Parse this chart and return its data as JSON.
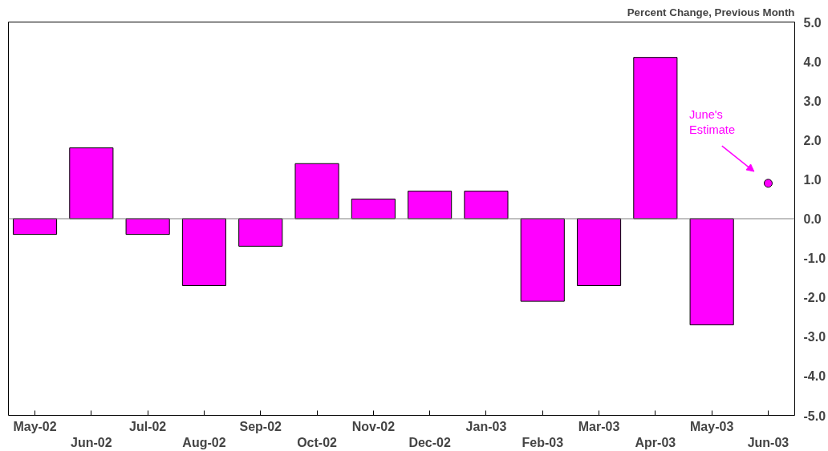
{
  "chart_data": {
    "type": "bar",
    "ylabel": "Percent Change, Previous Month",
    "categories": [
      "May-02",
      "Jun-02",
      "Jul-02",
      "Aug-02",
      "Sep-02",
      "Oct-02",
      "Nov-02",
      "Dec-02",
      "Jan-03",
      "Feb-03",
      "Mar-03",
      "Apr-03",
      "May-03",
      "Jun-03"
    ],
    "series": [
      {
        "color": "#ff00ff",
        "values": [
          -0.4,
          1.8,
          -0.4,
          -1.7,
          -0.7,
          1.4,
          0.5,
          0.7,
          0.7,
          -2.1,
          -1.7,
          4.1,
          -2.7,
          null
        ]
      },
      {
        "type": "scatter",
        "color": "#ff00ff",
        "marker": "circle",
        "values": [
          null,
          null,
          null,
          null,
          null,
          null,
          null,
          null,
          null,
          null,
          null,
          null,
          null,
          0.9
        ]
      }
    ],
    "annotations": [
      "June's\nEstimate"
    ],
    "ylim": [
      -5,
      5
    ],
    "yticks": [
      {
        "value": -5,
        "label": "-5.0"
      },
      {
        "value": -4,
        "label": "-4.0"
      },
      {
        "value": -3,
        "label": "-3.0"
      },
      {
        "value": -2,
        "label": "-2.0"
      },
      {
        "value": -1,
        "label": "-1.0"
      },
      {
        "value": 0,
        "label": "0.0"
      },
      {
        "value": 1,
        "label": "1.0"
      },
      {
        "value": 2,
        "label": "2.0"
      },
      {
        "value": 3,
        "label": "3.0"
      },
      {
        "value": 4,
        "label": "4.0"
      },
      {
        "value": 5,
        "label": "5.0"
      }
    ],
    "ref_lines": [
      {
        "axis": "y",
        "value": 0,
        "color": "#808080"
      }
    ],
    "grid": false
  }
}
